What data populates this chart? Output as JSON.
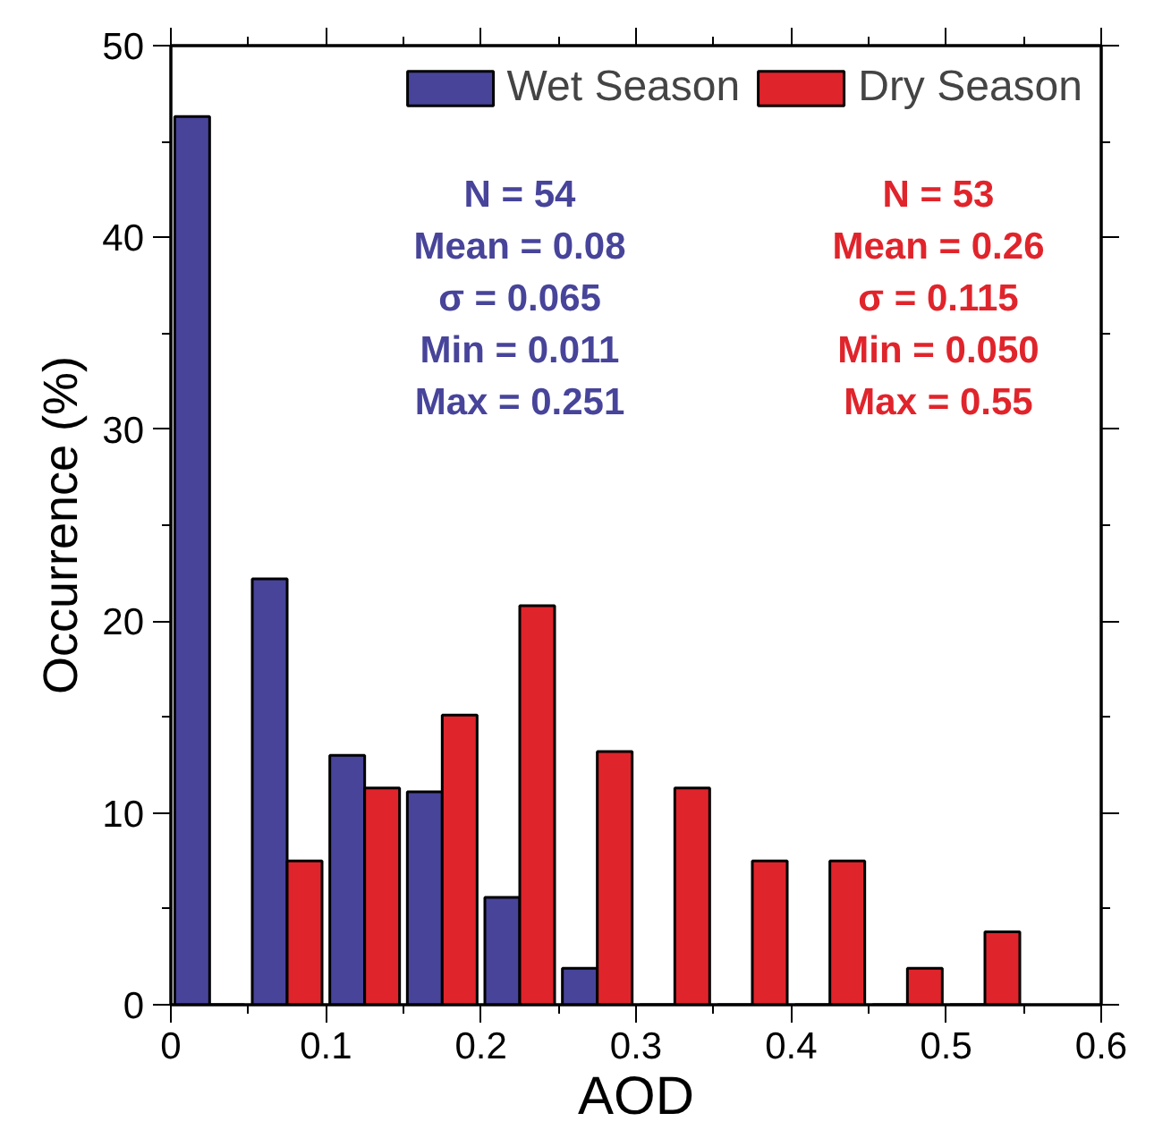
{
  "chart_data": {
    "type": "histogram",
    "xlabel": "AOD",
    "ylabel": "Occurrence (%)",
    "bins": [
      0,
      0.05,
      0.1,
      0.15,
      0.2,
      0.25,
      0.3,
      0.35,
      0.4,
      0.45,
      0.5,
      0.55
    ],
    "series": [
      {
        "name": "Wet Season",
        "color": "#47449a",
        "values": [
          46.3,
          22.2,
          13.0,
          11.1,
          5.6,
          1.9,
          0,
          0,
          0,
          0,
          0
        ]
      },
      {
        "name": "Dry Season",
        "color": "#e0242b",
        "values": [
          0,
          7.5,
          11.3,
          15.1,
          20.8,
          13.2,
          11.3,
          7.5,
          7.5,
          1.9,
          3.8
        ]
      }
    ],
    "xlim": [
      0,
      0.6
    ],
    "ylim": [
      0,
      50
    ],
    "xticks": [
      0,
      0.1,
      0.2,
      0.3,
      0.4,
      0.5,
      0.6
    ],
    "yticks": [
      0,
      10,
      20,
      30,
      40,
      50
    ],
    "legend": "top right",
    "grid": false,
    "annotations": [
      "N = 54",
      "Mean = 0.08",
      "σ = 0.065",
      "Min = 0.011",
      "Max = 0.251",
      "N = 53",
      "Mean = 0.26",
      "σ = 0.115",
      "Min = 0.050",
      "Max = 0.55"
    ]
  }
}
